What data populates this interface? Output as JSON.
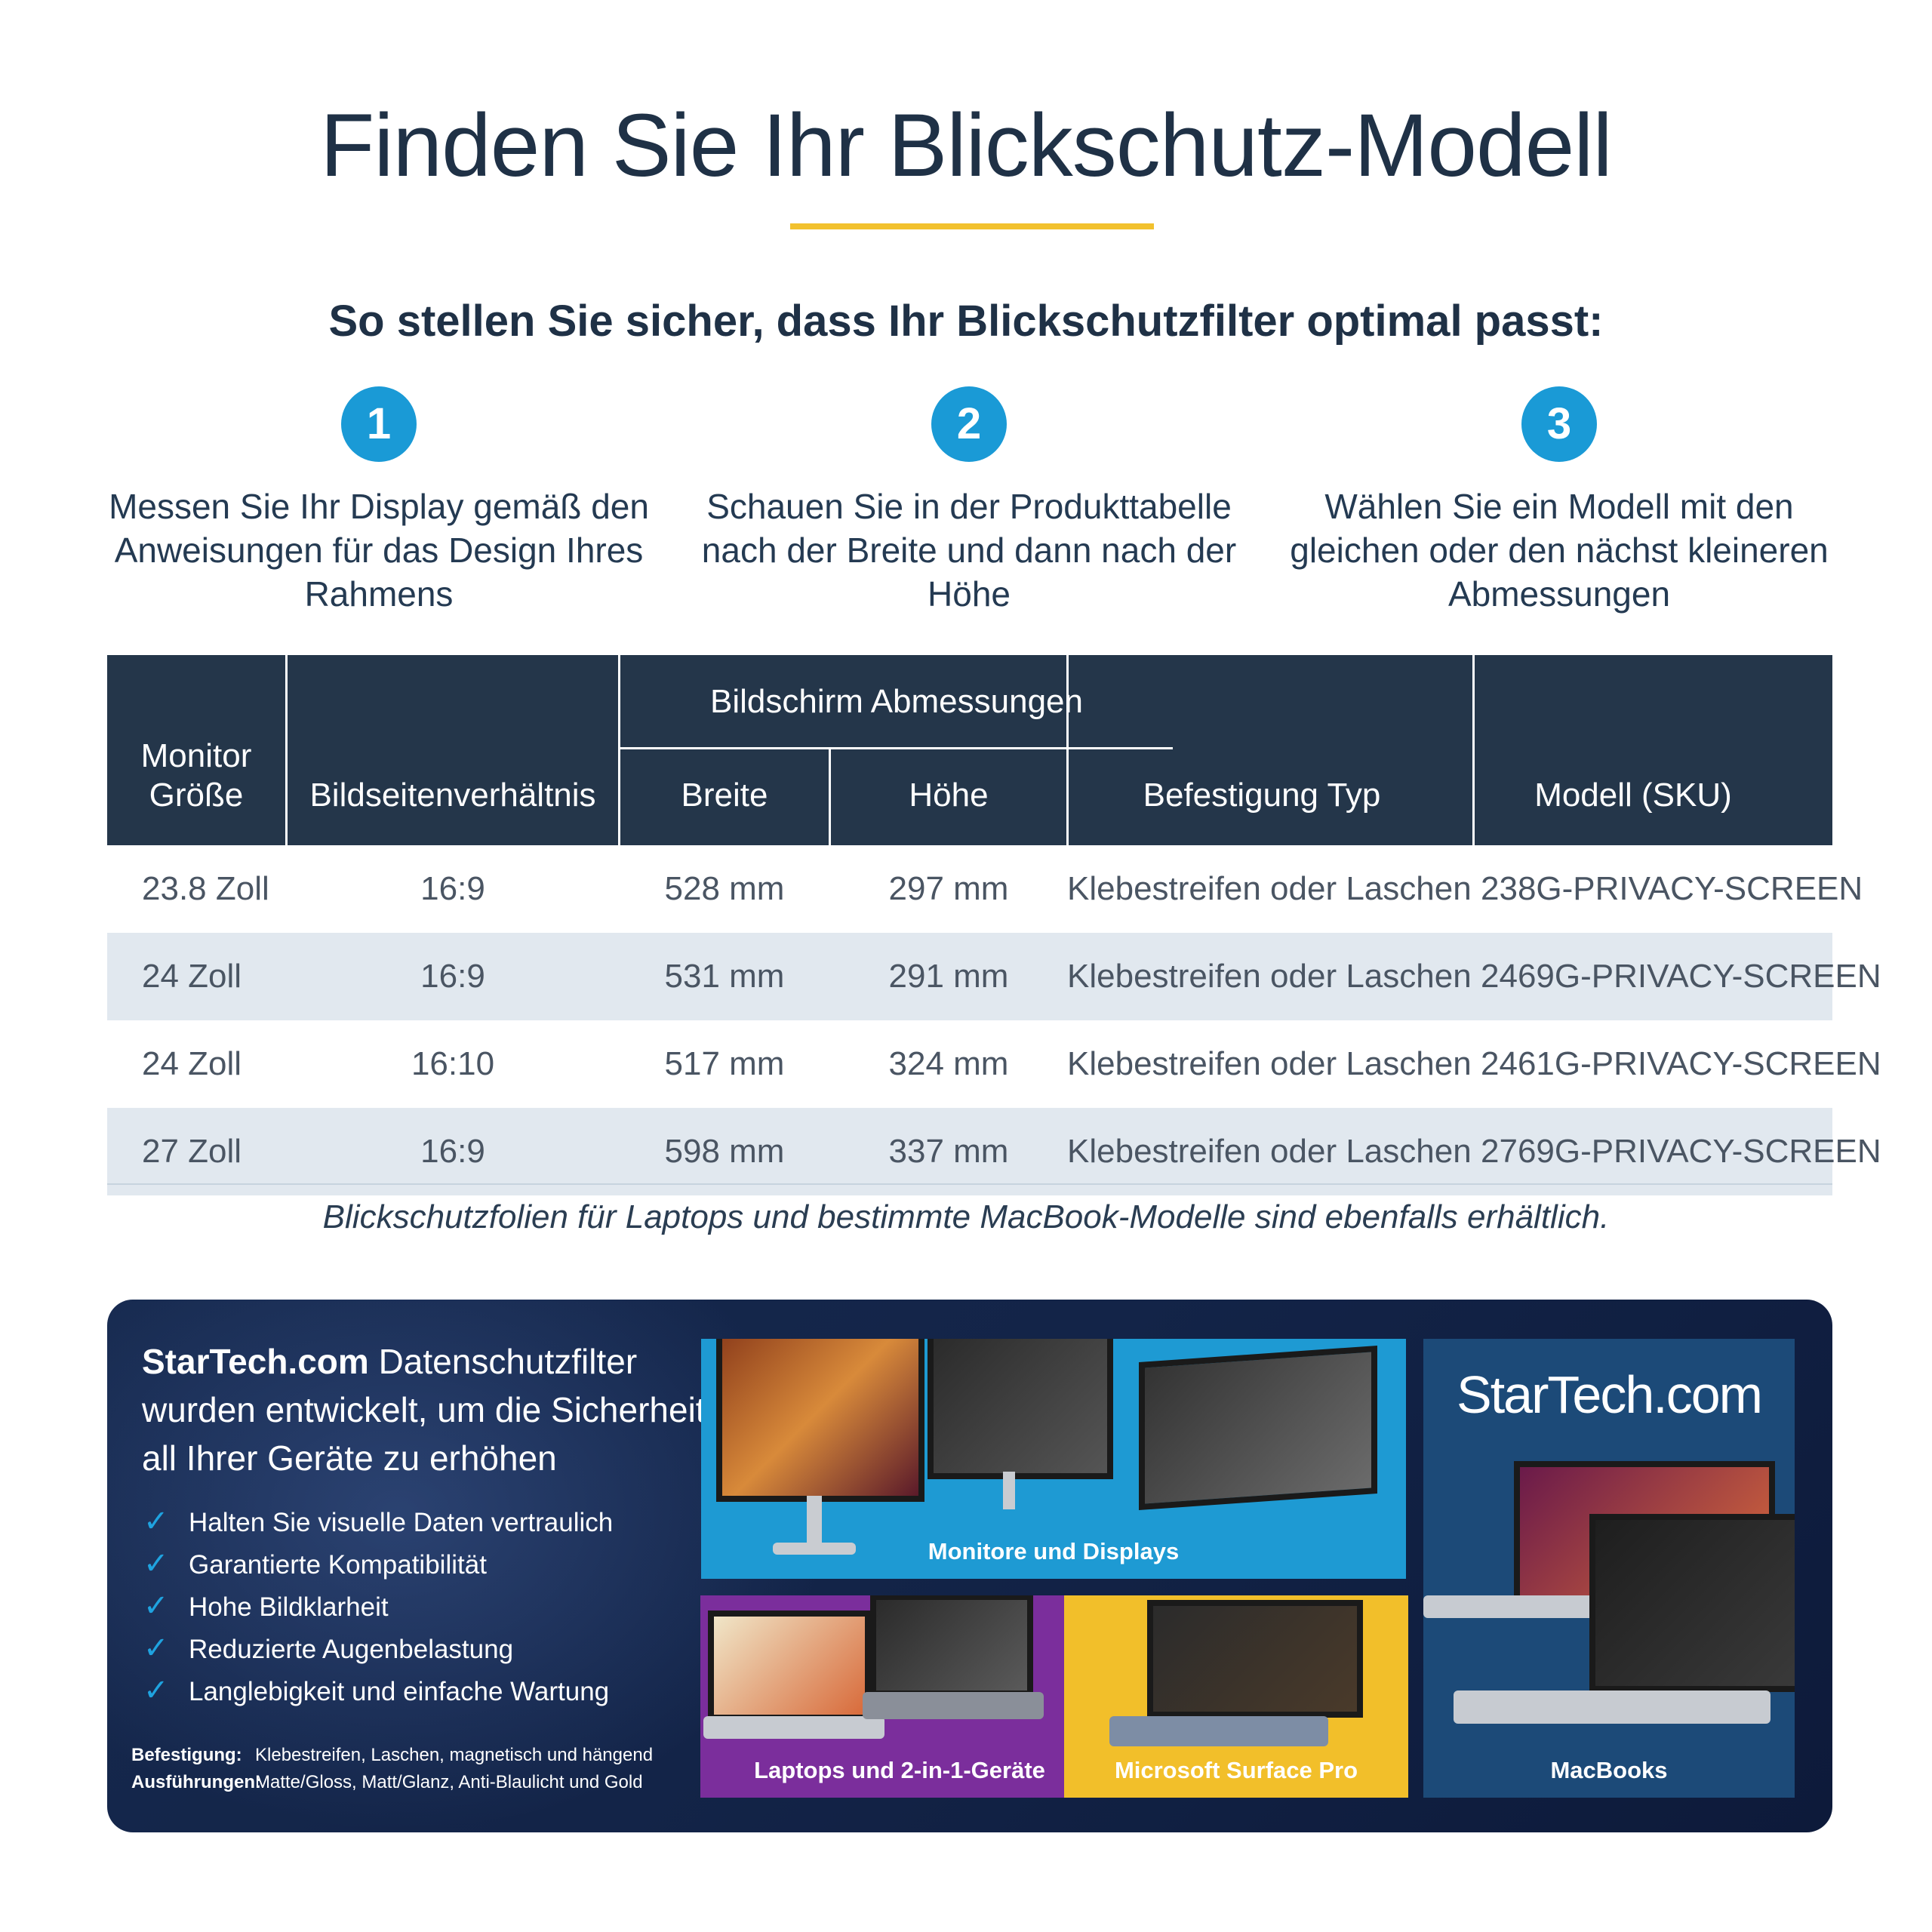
{
  "header": {
    "title": "Finden Sie Ihr Blickschutz-Modell",
    "subtitle": "So stellen Sie sicher, dass Ihr Blickschutzfilter optimal passt:",
    "accent_color": "#f2c12e"
  },
  "steps": [
    {
      "number": "1",
      "text": "Messen Sie Ihr Display gemäß den Anweisungen für das Design Ihres Rahmens"
    },
    {
      "number": "2",
      "text": "Schauen Sie in der Produkttabelle nach der Breite und dann nach der Höhe"
    },
    {
      "number": "3",
      "text": "Wählen Sie ein Modell mit den gleichen oder den nächst kleineren Abmessungen"
    }
  ],
  "table": {
    "headers": {
      "size_line1": "Monitor",
      "size_line2": "Größe",
      "aspect": "Bildseitenverhältnis",
      "dimensions_group": "Bildschirm Abmessungen",
      "width": "Breite",
      "height": "Höhe",
      "mount": "Befestigung Typ",
      "model": "Modell (SKU)"
    },
    "rows": [
      {
        "size": "23.8 Zoll",
        "aspect": "16:9",
        "width": "528 mm",
        "height": "297 mm",
        "mount": "Klebestreifen oder Laschen",
        "model": "238G-PRIVACY-SCREEN"
      },
      {
        "size": "24 Zoll",
        "aspect": "16:9",
        "width": "531 mm",
        "height": "291 mm",
        "mount": "Klebestreifen oder Laschen",
        "model": "2469G-PRIVACY-SCREEN"
      },
      {
        "size": "24 Zoll",
        "aspect": "16:10",
        "width": "517 mm",
        "height": "324 mm",
        "mount": "Klebestreifen oder Laschen",
        "model": "2461G-PRIVACY-SCREEN"
      },
      {
        "size": "27 Zoll",
        "aspect": "16:9",
        "width": "598 mm",
        "height": "337 mm",
        "mount": "Klebestreifen oder Laschen",
        "model": "2769G-PRIVACY-SCREEN"
      }
    ],
    "footnote": "Blickschutzfolien für Laptops und bestimmte MacBook-Modelle sind ebenfalls erhältlich."
  },
  "banner": {
    "brand": "StarTech.com",
    "heading_rest": " Datenschutzfilter wurden entwickelt, um die Sicherheit all Ihrer Geräte zu erhöhen",
    "features": [
      "Halten Sie visuelle Daten vertraulich",
      "Garantierte Kompatibilität",
      "Hohe Bildklarheit",
      "Reduzierte Augenbelastung",
      "Langlebigkeit und einfache Wartung"
    ],
    "check_icon": "check-icon",
    "mount_label": "Befestigung:",
    "mount_value": "Klebestreifen, Laschen, magnetisch und hängend",
    "finish_label": "Ausführungen:",
    "finish_value": "Matte/Gloss, Matt/Glanz, Anti-Blaulicht und Gold",
    "tiles": {
      "monitors": "Monitore und Displays",
      "laptops": "Laptops und 2-in-1-Geräte",
      "surface": "Microsoft Surface Pro",
      "macbooks": "MacBooks",
      "logo": "StarTech.com"
    },
    "tile_colors": {
      "monitors": "#1e9ad3",
      "laptops": "#7b2e9c",
      "surface": "#f2bf2a",
      "macbooks": "#1c4a78"
    }
  }
}
